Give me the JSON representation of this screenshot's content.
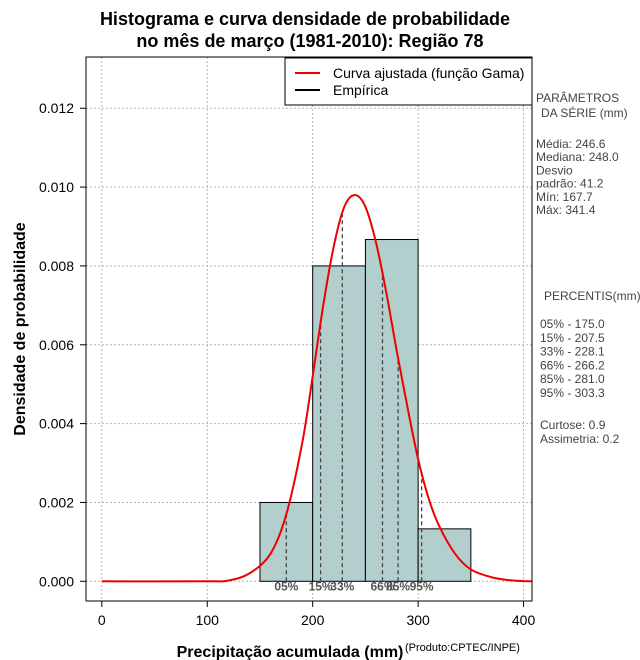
{
  "chart_data": {
    "type": "bar",
    "title_line1": "Histograma e curva densidade de probabilidade",
    "title_line2": "no mês de março (1981-2010): Região 78",
    "xlabel": "Precipitação acumulada (mm)",
    "ylabel": "Densidade de probabilidade",
    "credit": "(Produto:CPTEC/INPE)",
    "xlim": [
      -15,
      408
    ],
    "ylim": [
      -0.0005,
      0.0133
    ],
    "x_ticks": [
      0,
      100,
      200,
      300,
      400
    ],
    "x_tick_labels": [
      "0",
      "100",
      "200",
      "300",
      "400"
    ],
    "y_ticks": [
      0.0,
      0.002,
      0.004,
      0.006,
      0.008,
      0.01,
      0.012
    ],
    "y_tick_labels": [
      "0.000",
      "0.002",
      "0.004",
      "0.006",
      "0.008",
      "0.010",
      "0.012"
    ],
    "grid": true,
    "bars": [
      {
        "x0": 150,
        "x1": 200,
        "density": 0.002
      },
      {
        "x0": 200,
        "x1": 250,
        "density": 0.008
      },
      {
        "x0": 250,
        "x1": 300,
        "density": 0.00867
      },
      {
        "x0": 300,
        "x1": 350,
        "density": 0.00133
      }
    ],
    "bar_color": "#b3cfcd",
    "curve": {
      "label": "Curva ajustada (função Gama)",
      "color": "#ee0000",
      "x": [
        0,
        100,
        120,
        140,
        160,
        175,
        190,
        200,
        210,
        220,
        230,
        240,
        250,
        260,
        270,
        280,
        290,
        300,
        310,
        320,
        335,
        350,
        370,
        390,
        408
      ],
      "y": [
        0,
        0,
        2e-05,
        0.0002,
        0.0007,
        0.0017,
        0.0035,
        0.0052,
        0.007,
        0.0085,
        0.0095,
        0.0098,
        0.0095,
        0.0086,
        0.0073,
        0.0058,
        0.0044,
        0.0031,
        0.0021,
        0.0014,
        0.0007,
        0.0003,
        0.0001,
        2e-05,
        0
      ]
    },
    "empirical_label": "Empírica",
    "percentiles": [
      {
        "label": "05%",
        "value": 175.0
      },
      {
        "label": "15%",
        "value": 207.5
      },
      {
        "label": "33%",
        "value": 228.1
      },
      {
        "label": "66%",
        "value": 266.2
      },
      {
        "label": "85%",
        "value": 281.0
      },
      {
        "label": "95%",
        "value": 303.3
      }
    ],
    "side_panel": {
      "params_title_1": "PARÂMETROS",
      "params_title_2": "DA SÉRIE (mm)",
      "params": [
        "Média:  246.6",
        "Mediana:  248.0",
        "Desvio",
        "padrão:  41.2",
        "Mín:  167.7",
        "Máx:  341.4"
      ],
      "percentis_title": "PERCENTIS(mm)",
      "percentis": [
        "05% -  175.0",
        "15% -  207.5",
        "33% -  228.1",
        "66% -  266.2",
        "85% -  281.0",
        "95% -  303.3"
      ],
      "stats": [
        "Curtose:  0.9",
        "Assimetria:  0.2"
      ]
    }
  }
}
